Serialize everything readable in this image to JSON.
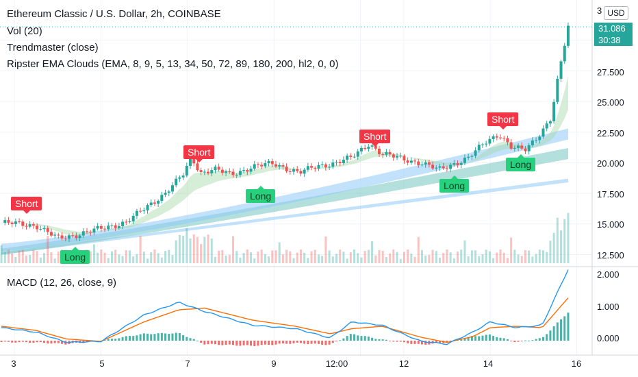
{
  "legend": {
    "title": "Ethereum Classic / U.S. Dollar, 2h, COINBASE",
    "vol": "Vol (20)",
    "trend": "Trendmaster (close)",
    "ripster": "Ripster EMA Clouds (EMA, 8, 9, 5, 13, 34, 50, 72, 89, 180, 200, hl2, 0, 0)",
    "macd": "MACD (12, 26, close, 9)"
  },
  "price_axis": {
    "currency": "USD",
    "top_partial": "3",
    "labels": [
      "27.500",
      "25.000",
      "22.500",
      "20.000",
      "17.500",
      "15.000",
      "12.500"
    ],
    "last_price": "31.086",
    "countdown": "30:38"
  },
  "macd_axis": {
    "labels": [
      "2.000",
      "1.000",
      "0.000"
    ]
  },
  "time_axis": {
    "labels": [
      "3",
      "5",
      "7",
      "9",
      "12:00",
      "12",
      "14",
      "16"
    ]
  },
  "signals": [
    {
      "type": "Short",
      "label": "Short"
    },
    {
      "type": "Short",
      "label": "Short"
    },
    {
      "type": "Short",
      "label": "Short"
    },
    {
      "type": "Short",
      "label": "Short"
    },
    {
      "type": "Long",
      "label": "Long"
    },
    {
      "type": "Long",
      "label": "Long"
    },
    {
      "type": "Long",
      "label": "Long"
    },
    {
      "type": "Long",
      "label": "Long"
    }
  ],
  "colors": {
    "up": "#26a69a",
    "down": "#ef5350",
    "short": "#f23645",
    "long": "#26d07c",
    "cloud_fast": "#a5d6a7",
    "cloud_blue": "#90caf9",
    "cloud_teal": "#80cbc4",
    "macd_line": "#2196f3",
    "signal_line": "#ff6d00"
  },
  "chart_data": {
    "type": "line",
    "symbol": "Ethereum Classic / U.S. Dollar",
    "interval": "2h",
    "exchange": "COINBASE",
    "price_ylim": [
      11.8,
      32.5
    ],
    "price_keypoints": {
      "x_day": [
        2.7,
        3.5,
        4.0,
        4.5,
        5.0,
        5.6,
        6.0,
        6.5,
        6.9,
        7.1,
        7.3,
        7.6,
        8.0,
        8.5,
        9.0,
        9.6,
        10.0,
        10.4,
        10.8,
        11.2,
        11.5,
        12.0,
        12.4,
        12.8,
        13.2,
        13.5,
        13.9,
        14.2,
        14.5,
        14.8,
        15.1,
        15.4,
        15.6,
        15.8
      ],
      "close": [
        15.1,
        14.9,
        13.8,
        14.2,
        14.6,
        15.2,
        16.2,
        17.6,
        19.0,
        20.4,
        19.2,
        19.5,
        19.0,
        19.7,
        19.9,
        19.2,
        19.7,
        20.0,
        20.4,
        21.6,
        20.7,
        20.3,
        20.0,
        19.4,
        20.0,
        20.4,
        21.7,
        22.4,
        21.2,
        21.0,
        22.2,
        23.6,
        27.5,
        31.1
      ]
    },
    "ema_cloud_blue_end": [
      18.0,
      22.8
    ],
    "ema_cloud_teal_end": [
      17.3,
      21.0
    ],
    "ema_cloud_200_end": [
      18.6
    ],
    "volume_peaks_last_day": "highest volume bars near Dec 15-16",
    "macd": {
      "ylim": [
        -0.3,
        2.1
      ],
      "macd_keypoints": {
        "x_day": [
          2.7,
          3.5,
          4.2,
          5.0,
          6.0,
          6.8,
          7.4,
          8.5,
          9.5,
          10.3,
          10.8,
          11.5,
          12.4,
          13.0,
          13.6,
          14.0,
          14.6,
          15.2,
          15.8
        ],
        "values": [
          0.38,
          0.25,
          -0.05,
          -0.02,
          0.75,
          1.12,
          0.85,
          0.45,
          0.35,
          0.08,
          0.55,
          0.45,
          -0.02,
          -0.1,
          0.25,
          0.55,
          0.38,
          0.45,
          2.08
        ]
      },
      "signal_keypoints": {
        "x_day": [
          2.7,
          3.5,
          4.2,
          5.0,
          6.0,
          6.8,
          7.4,
          8.5,
          9.5,
          10.3,
          10.8,
          11.5,
          12.4,
          13.0,
          13.6,
          14.0,
          14.6,
          15.2,
          15.8
        ],
        "values": [
          0.42,
          0.3,
          0.05,
          -0.02,
          0.55,
          0.9,
          0.95,
          0.6,
          0.42,
          0.2,
          0.35,
          0.42,
          0.1,
          -0.05,
          0.12,
          0.38,
          0.42,
          0.38,
          1.25
        ]
      }
    }
  }
}
